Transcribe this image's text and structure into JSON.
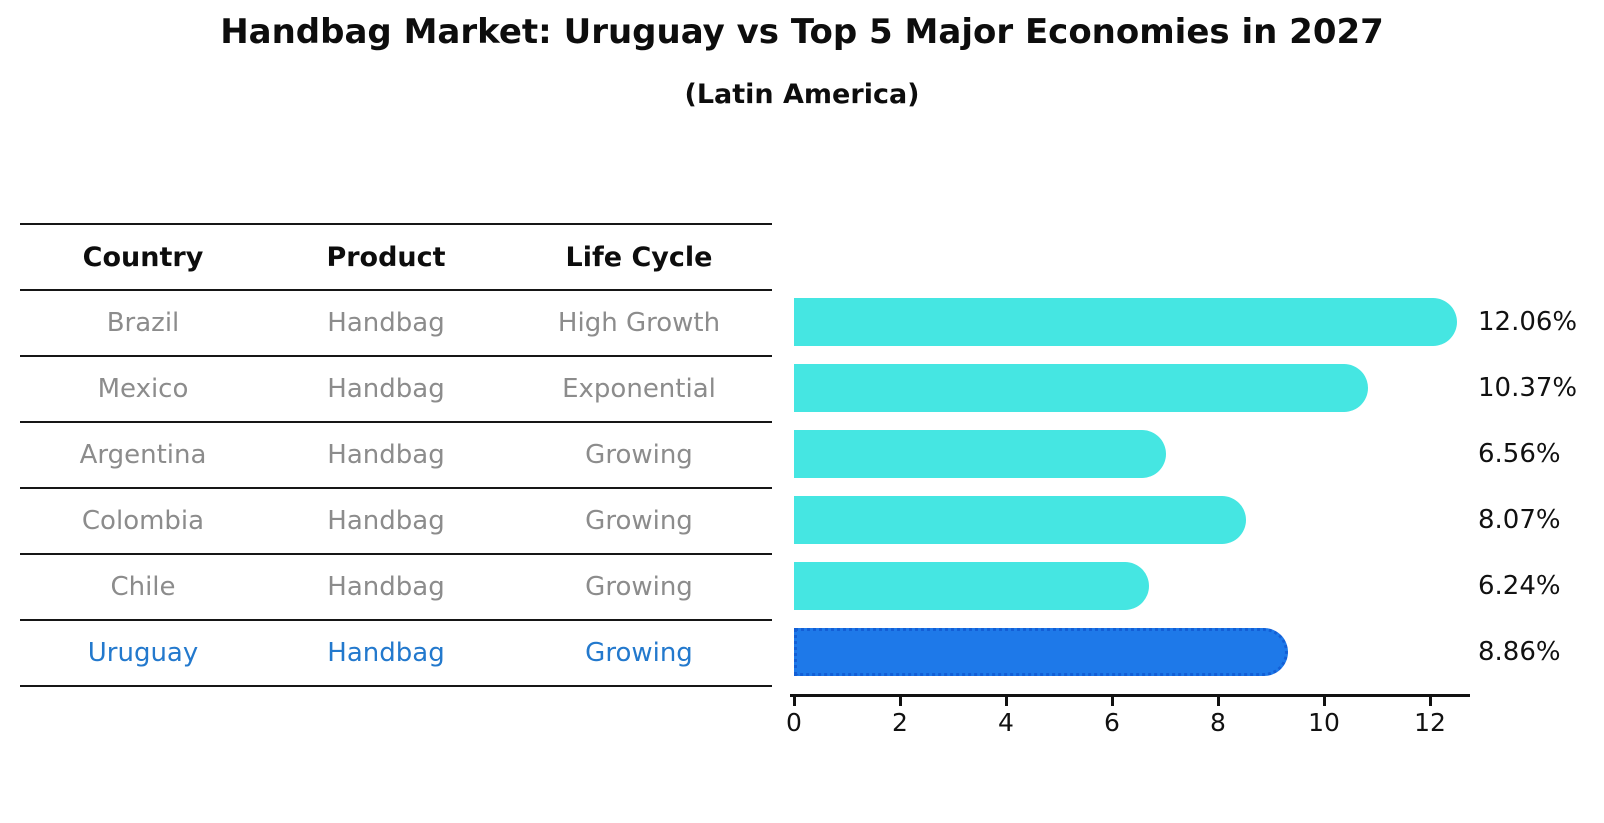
{
  "title": "Handbag Market: Uruguay vs Top 5 Major Economies in 2027",
  "subtitle": "(Latin America)",
  "colors": {
    "bar": "#45e6e2",
    "highlight_bar": "#1e79e9",
    "highlight_border": "#135fd6",
    "row_text": "#8c8c8c",
    "highlight_text": "#2379cd",
    "axis": "#111111"
  },
  "table": {
    "headers": [
      "Country",
      "Product",
      "Life Cycle"
    ],
    "rows": [
      {
        "country": "Brazil",
        "product": "Handbag",
        "life_cycle": "High Growth",
        "highlight": false
      },
      {
        "country": "Mexico",
        "product": "Handbag",
        "life_cycle": "Exponential",
        "highlight": false
      },
      {
        "country": "Argentina",
        "product": "Handbag",
        "life_cycle": "Growing",
        "highlight": false
      },
      {
        "country": "Colombia",
        "product": "Handbag",
        "life_cycle": "Growing",
        "highlight": false
      },
      {
        "country": "Chile",
        "product": "Handbag",
        "life_cycle": "Growing",
        "highlight": false
      },
      {
        "country": "Uruguay",
        "product": "Handbag",
        "life_cycle": "Growing",
        "highlight": true
      }
    ]
  },
  "chart_data": {
    "type": "bar",
    "orientation": "horizontal",
    "title": "Handbag Market: Uruguay vs Top 5 Major Economies in 2027 (Latin America)",
    "categories": [
      "Brazil",
      "Mexico",
      "Argentina",
      "Colombia",
      "Chile",
      "Uruguay"
    ],
    "values": [
      12.06,
      10.37,
      6.56,
      8.07,
      6.24,
      8.86
    ],
    "value_labels": [
      "12.06%",
      "10.37%",
      "6.56%",
      "8.07%",
      "6.24%",
      "8.86%"
    ],
    "highlighted_category": "Uruguay",
    "xlabel": "",
    "ylabel": "",
    "xticks": [
      0,
      2,
      4,
      6,
      8,
      10,
      12
    ],
    "xtick_labels": [
      "0",
      "2",
      "4",
      "6",
      "8",
      "10",
      "12"
    ],
    "xlim": [
      0,
      12.8
    ],
    "grid": false,
    "legend": false
  }
}
